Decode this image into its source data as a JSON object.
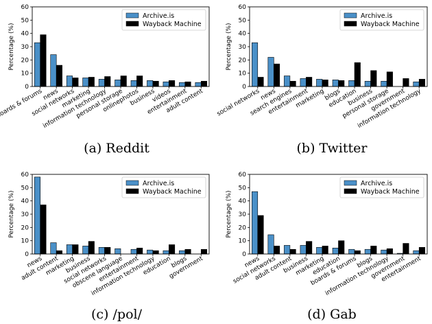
{
  "colors": {
    "archive": "#4a90c8",
    "wayback": "#000000",
    "axis": "#000000"
  },
  "chart_data": [
    {
      "type": "bar",
      "caption": "(a) Reddit",
      "ylabel": "Percentage (%)",
      "ylim": [
        0,
        60
      ],
      "yticks": [
        0,
        10,
        20,
        30,
        40,
        50,
        60
      ],
      "legend_position": "top-right",
      "categories": [
        "boards & forums",
        "news",
        "social networks",
        "marketing",
        "information technology",
        "personal storage",
        "onlinephotos",
        "business",
        "videos",
        "entertainment",
        "adult content"
      ],
      "series": [
        {
          "name": "Archive.is",
          "values": [
            33,
            24,
            8,
            6.5,
            5.5,
            5,
            4.5,
            4.5,
            3.5,
            3,
            3
          ]
        },
        {
          "name": "Wayback Machine",
          "values": [
            39,
            16,
            6.5,
            7,
            7.5,
            8,
            8,
            4,
            4.5,
            3.5,
            4
          ]
        }
      ]
    },
    {
      "type": "bar",
      "caption": "(b) Twitter",
      "ylabel": "Percentage (%)",
      "ylim": [
        0,
        60
      ],
      "yticks": [
        0,
        10,
        20,
        30,
        40,
        50,
        60
      ],
      "legend_position": "top-right",
      "categories": [
        "social networks",
        "news",
        "search engines",
        "entertainment",
        "marketing",
        "blogs",
        "education",
        "business",
        "personal storage",
        "government",
        "information technology"
      ],
      "series": [
        {
          "name": "Archive.is",
          "values": [
            33,
            22,
            8,
            6,
            5.5,
            5,
            4.5,
            4,
            4,
            0,
            3.5
          ]
        },
        {
          "name": "Wayback Machine",
          "values": [
            7,
            17,
            4,
            7,
            5,
            4.5,
            18,
            12,
            11,
            6,
            5.5
          ]
        }
      ]
    },
    {
      "type": "bar",
      "caption": "(c) /pol/",
      "ylabel": "Percentage (%)",
      "ylim": [
        0,
        60
      ],
      "yticks": [
        0,
        10,
        20,
        30,
        40,
        50,
        60
      ],
      "legend_position": "top-right",
      "categories": [
        "news",
        "adult content",
        "marketing",
        "business",
        "social networks",
        "obscene language",
        "entertainment",
        "information technology",
        "education",
        "blogs",
        "government"
      ],
      "series": [
        {
          "name": "Archive.is",
          "values": [
            58,
            8.5,
            7,
            6,
            5,
            4,
            3.5,
            3,
            2.5,
            2.5,
            0
          ]
        },
        {
          "name": "Wayback Machine",
          "values": [
            37,
            2.5,
            7,
            9.5,
            5,
            0,
            4.5,
            2.5,
            7,
            3.5,
            3.5
          ]
        }
      ]
    },
    {
      "type": "bar",
      "caption": "(d) Gab",
      "ylabel": "Percentage (%)",
      "ylim": [
        0,
        60
      ],
      "yticks": [
        0,
        10,
        20,
        30,
        40,
        50,
        60
      ],
      "legend_position": "top-right",
      "categories": [
        "news",
        "social networks",
        "adult content",
        "business",
        "marketing",
        "education",
        "boards & forums",
        "blogs",
        "information technology",
        "government",
        "entertainment"
      ],
      "series": [
        {
          "name": "Archive.is",
          "values": [
            47,
            14.5,
            6.5,
            6.5,
            5,
            4.5,
            3.5,
            3.5,
            3,
            0.5,
            2.5
          ]
        },
        {
          "name": "Wayback Machine",
          "values": [
            29,
            6,
            3.5,
            9.5,
            6,
            10,
            2.5,
            6,
            4,
            8,
            5
          ]
        }
      ]
    }
  ]
}
